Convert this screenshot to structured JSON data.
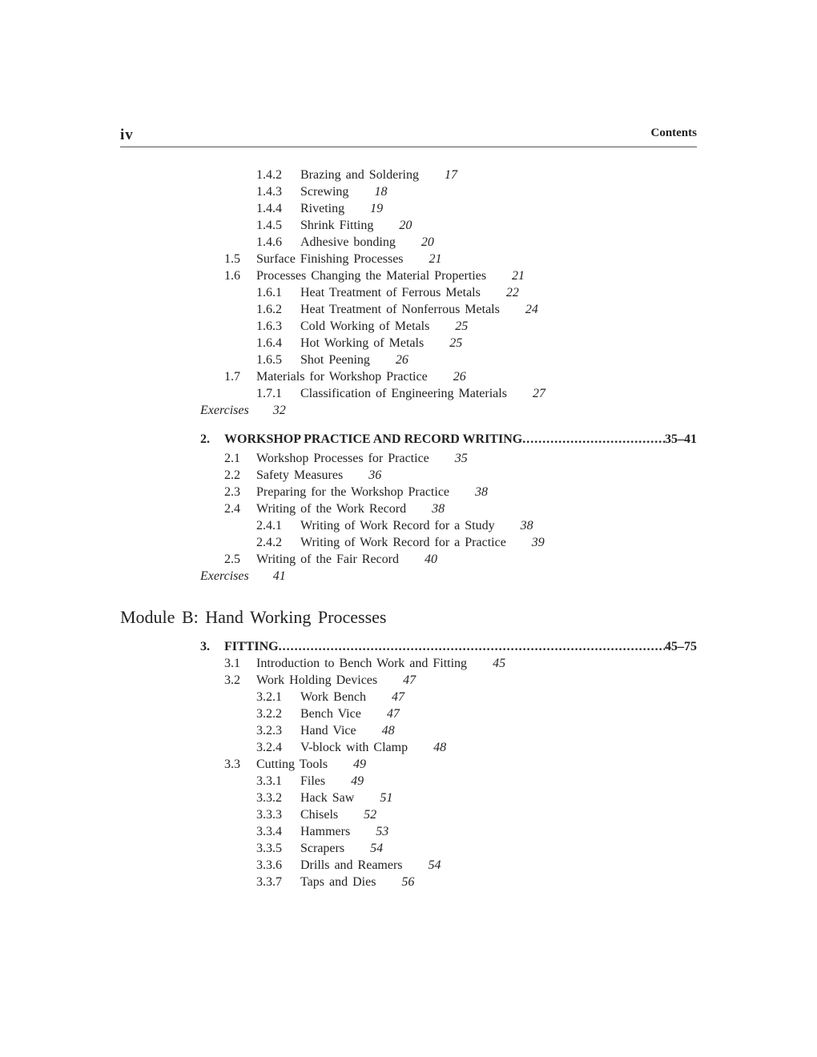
{
  "header": {
    "folio": "iv",
    "running_title": "Contents"
  },
  "block1": [
    {
      "level": 2,
      "num": "1.4.2",
      "title": "Brazing and Soldering",
      "page": "17"
    },
    {
      "level": 2,
      "num": "1.4.3",
      "title": "Screwing",
      "page": "18"
    },
    {
      "level": 2,
      "num": "1.4.4",
      "title": "Riveting",
      "page": "19"
    },
    {
      "level": 2,
      "num": "1.4.5",
      "title": "Shrink Fitting",
      "page": "20"
    },
    {
      "level": 2,
      "num": "1.4.6",
      "title": "Adhesive bonding",
      "page": "20"
    },
    {
      "level": 1,
      "num": "1.5",
      "title": "Surface Finishing Processes",
      "page": "21"
    },
    {
      "level": 1,
      "num": "1.6",
      "title": "Processes Changing the Material Properties",
      "page": "21"
    },
    {
      "level": 2,
      "num": "1.6.1",
      "title": "Heat Treatment of Ferrous Metals",
      "page": "22"
    },
    {
      "level": 2,
      "num": "1.6.2",
      "title": "Heat Treatment of Nonferrous Metals",
      "page": "24"
    },
    {
      "level": 2,
      "num": "1.6.3",
      "title": "Cold Working of Metals",
      "page": "25"
    },
    {
      "level": 2,
      "num": "1.6.4",
      "title": "Hot Working of Metals",
      "page": "25"
    },
    {
      "level": 2,
      "num": "1.6.5",
      "title": "Shot Peening",
      "page": "26"
    },
    {
      "level": 1,
      "num": "1.7",
      "title": "Materials for Workshop Practice",
      "page": "26"
    },
    {
      "level": 2,
      "num": "1.7.1",
      "title": "Classification of Engineering Materials",
      "page": "27"
    },
    {
      "level": 0,
      "num": "",
      "title": "Exercises",
      "page": "32"
    }
  ],
  "chapter2": {
    "num": "2.",
    "title": "WORKSHOP PRACTICE AND RECORD WRITING",
    "pages": "35–41"
  },
  "block2": [
    {
      "level": 1,
      "num": "2.1",
      "title": "Workshop Processes for Practice",
      "page": "35"
    },
    {
      "level": 1,
      "num": "2.2",
      "title": "Safety Measures",
      "page": "36"
    },
    {
      "level": 1,
      "num": "2.3",
      "title": "Preparing for the Workshop Practice",
      "page": "38"
    },
    {
      "level": 1,
      "num": "2.4",
      "title": "Writing of the Work Record",
      "page": "38"
    },
    {
      "level": 2,
      "num": "2.4.1",
      "title": "Writing of Work Record for a Study",
      "page": "38"
    },
    {
      "level": 2,
      "num": "2.4.2",
      "title": "Writing of Work Record for a Practice",
      "page": "39"
    },
    {
      "level": 1,
      "num": "2.5",
      "title": "Writing of the Fair Record",
      "page": "40"
    },
    {
      "level": 0,
      "num": "",
      "title": "Exercises",
      "page": "41"
    }
  ],
  "module": "Module B: Hand Working Processes",
  "chapter3": {
    "num": "3.",
    "title": "FITTING",
    "pages": "45–75"
  },
  "block3": [
    {
      "level": 1,
      "num": "3.1",
      "title": "Introduction to Bench Work and Fitting",
      "page": "45"
    },
    {
      "level": 1,
      "num": "3.2",
      "title": "Work Holding Devices",
      "page": "47"
    },
    {
      "level": 2,
      "num": "3.2.1",
      "title": "Work Bench",
      "page": "47"
    },
    {
      "level": 2,
      "num": "3.2.2",
      "title": "Bench Vice",
      "page": "47"
    },
    {
      "level": 2,
      "num": "3.2.3",
      "title": "Hand Vice",
      "page": "48"
    },
    {
      "level": 2,
      "num": "3.2.4",
      "title": "V-block with Clamp",
      "page": "48"
    },
    {
      "level": 1,
      "num": "3.3",
      "title": "Cutting Tools",
      "page": "49"
    },
    {
      "level": 2,
      "num": "3.3.1",
      "title": "Files",
      "page": "49"
    },
    {
      "level": 2,
      "num": "3.3.2",
      "title": "Hack Saw",
      "page": "51"
    },
    {
      "level": 2,
      "num": "3.3.3",
      "title": "Chisels",
      "page": "52"
    },
    {
      "level": 2,
      "num": "3.3.4",
      "title": "Hammers",
      "page": "53"
    },
    {
      "level": 2,
      "num": "3.3.5",
      "title": "Scrapers",
      "page": "54"
    },
    {
      "level": 2,
      "num": "3.3.6",
      "title": "Drills and Reamers",
      "page": "54"
    },
    {
      "level": 2,
      "num": "3.3.7",
      "title": "Taps and Dies",
      "page": "56"
    }
  ]
}
